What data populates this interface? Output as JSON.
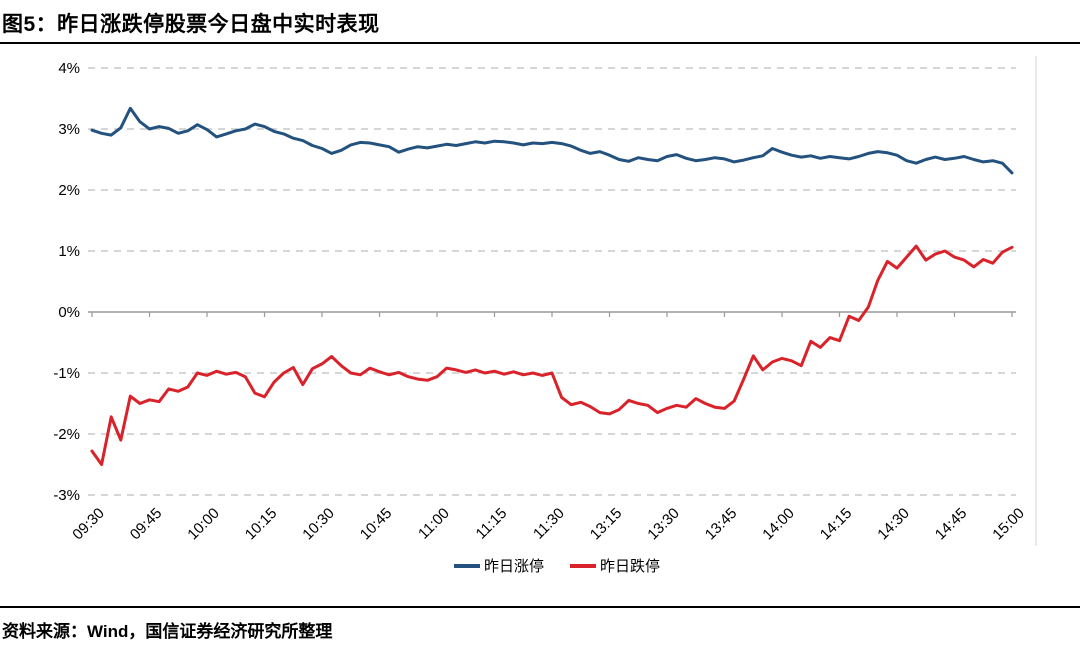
{
  "title": "图5：昨日涨跌停股票今日盘中实时表现",
  "source_note": "资料来源：Wind，国信证券经济研究所整理",
  "colors": {
    "limit_up_line": "#24527F",
    "limit_down_line": "#D9222A",
    "gridline": "#C9C9C9",
    "axis": "#9A9A9A",
    "right_border": "#E4E4E4"
  },
  "chart_data": {
    "type": "line",
    "title": "",
    "xlabel": "",
    "ylabel": "",
    "y_unit": "%",
    "ylim": [
      -3,
      4
    ],
    "grid": "horizontal-dashed",
    "legend_position": "bottom-center",
    "y_ticks": [
      4,
      3,
      2,
      1,
      0,
      -1,
      -2,
      -3
    ],
    "y_tick_labels": [
      "4%",
      "3%",
      "2%",
      "1%",
      "0%",
      "-1%",
      "-2%",
      "-3%"
    ],
    "x_tick_labels": [
      "09:30",
      "09:45",
      "10:00",
      "10:15",
      "10:30",
      "10:45",
      "11:00",
      "11:15",
      "11:30",
      "13:15",
      "13:30",
      "13:45",
      "14:00",
      "14:15",
      "14:30",
      "14:45",
      "15:00"
    ],
    "x_start": "09:30",
    "x_end": "15:00",
    "series": [
      {
        "name": "昨日涨停",
        "color": "#24527F",
        "values": [
          2.98,
          2.93,
          2.9,
          3.02,
          3.34,
          3.12,
          3.0,
          3.04,
          3.01,
          2.93,
          2.97,
          3.07,
          2.99,
          2.87,
          2.92,
          2.97,
          3.0,
          3.08,
          3.04,
          2.96,
          2.92,
          2.85,
          2.81,
          2.73,
          2.68,
          2.6,
          2.65,
          2.74,
          2.78,
          2.77,
          2.74,
          2.71,
          2.62,
          2.67,
          2.71,
          2.69,
          2.72,
          2.75,
          2.73,
          2.76,
          2.79,
          2.77,
          2.8,
          2.79,
          2.77,
          2.74,
          2.77,
          2.76,
          2.78,
          2.76,
          2.72,
          2.65,
          2.6,
          2.63,
          2.57,
          2.5,
          2.47,
          2.53,
          2.5,
          2.48,
          2.55,
          2.58,
          2.52,
          2.48,
          2.5,
          2.53,
          2.51,
          2.46,
          2.49,
          2.53,
          2.56,
          2.68,
          2.62,
          2.57,
          2.54,
          2.56,
          2.52,
          2.55,
          2.53,
          2.51,
          2.55,
          2.6,
          2.63,
          2.61,
          2.57,
          2.48,
          2.44,
          2.5,
          2.54,
          2.5,
          2.52,
          2.55,
          2.5,
          2.46,
          2.48,
          2.44,
          2.28
        ]
      },
      {
        "name": "昨日跌停",
        "color": "#D9222A",
        "values": [
          -2.28,
          -2.5,
          -1.72,
          -2.1,
          -1.38,
          -1.5,
          -1.44,
          -1.47,
          -1.26,
          -1.3,
          -1.23,
          -1.0,
          -1.04,
          -0.97,
          -1.02,
          -0.99,
          -1.06,
          -1.33,
          -1.39,
          -1.15,
          -1.0,
          -0.91,
          -1.19,
          -0.93,
          -0.85,
          -0.73,
          -0.88,
          -1.0,
          -1.03,
          -0.92,
          -0.98,
          -1.03,
          -0.99,
          -1.06,
          -1.1,
          -1.12,
          -1.06,
          -0.92,
          -0.95,
          -0.99,
          -0.95,
          -1.0,
          -0.97,
          -1.02,
          -0.98,
          -1.03,
          -1.0,
          -1.04,
          -1.0,
          -1.4,
          -1.52,
          -1.48,
          -1.55,
          -1.65,
          -1.67,
          -1.6,
          -1.45,
          -1.5,
          -1.53,
          -1.65,
          -1.58,
          -1.53,
          -1.56,
          -1.42,
          -1.5,
          -1.56,
          -1.58,
          -1.46,
          -1.1,
          -0.72,
          -0.95,
          -0.82,
          -0.76,
          -0.8,
          -0.88,
          -0.48,
          -0.58,
          -0.42,
          -0.47,
          -0.07,
          -0.14,
          0.08,
          0.52,
          0.83,
          0.72,
          0.9,
          1.08,
          0.85,
          0.95,
          1.0,
          0.9,
          0.85,
          0.74,
          0.86,
          0.8,
          0.98,
          1.06
        ]
      }
    ]
  }
}
